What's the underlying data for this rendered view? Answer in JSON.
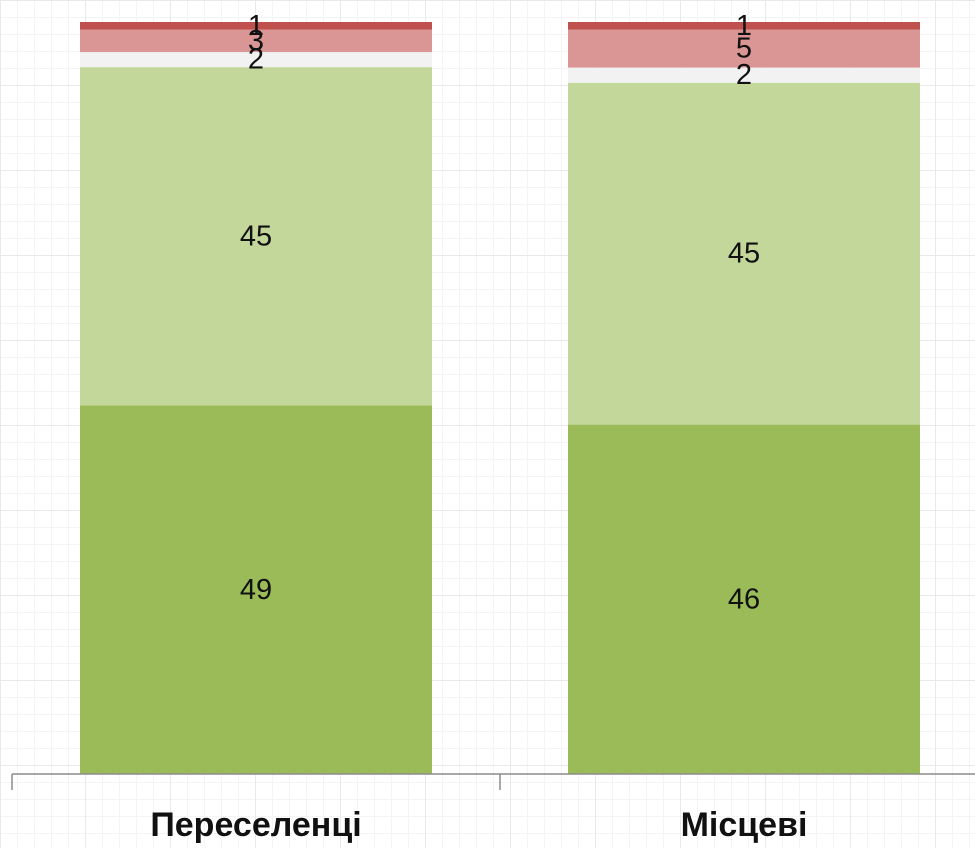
{
  "chart_data": {
    "type": "bar",
    "stacked": true,
    "categories": [
      "Переселенці",
      "Місцеві"
    ],
    "series": [
      {
        "values": [
          49,
          46
        ],
        "color": "#9bbb59"
      },
      {
        "values": [
          45,
          45
        ],
        "color": "#c4d79b"
      },
      {
        "values": [
          2,
          2
        ],
        "color": "#f2f2f2"
      },
      {
        "values": [
          3,
          5
        ],
        "color": "#da9694"
      },
      {
        "values": [
          1,
          1
        ],
        "color": "#c0504d"
      }
    ],
    "title": "",
    "xlabel": "",
    "ylabel": "",
    "ylim": [
      0,
      100
    ],
    "grid": true,
    "legend": "none"
  }
}
